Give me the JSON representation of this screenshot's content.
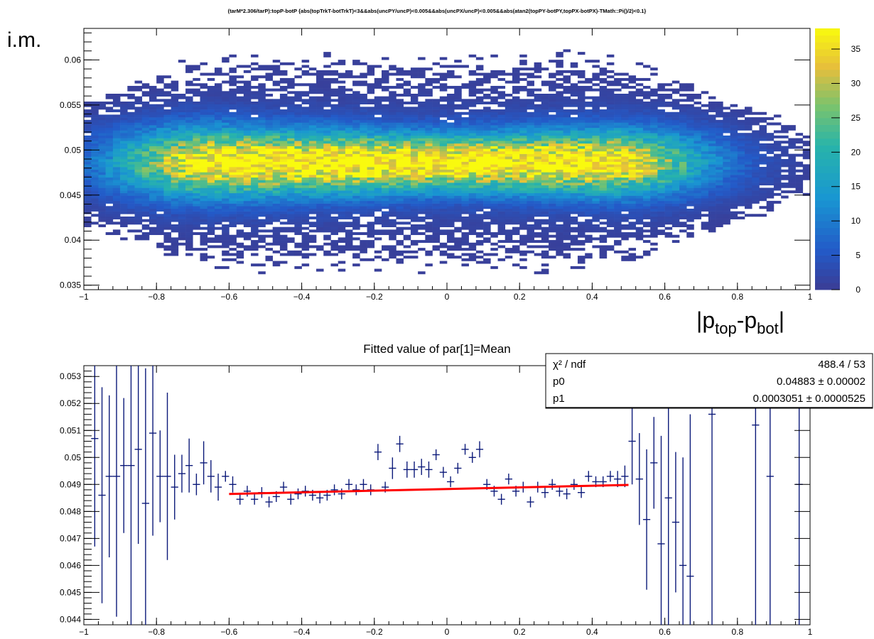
{
  "chart_data": [
    {
      "type": "heatmap",
      "title": "(tarM*2.306/tarP):topP-botP {abs(topTrkT-botTrkT)<3&&abs(uncPY/uncP)<0.005&&abs(uncPX/uncP)<0.005&&abs(atan2(topPY-botPY,topPX-botPX)-TMath::Pi()/2)<0.1}",
      "ylabel": "i.m.",
      "xlabel_parts": [
        "|p",
        "top",
        "-p",
        "bot",
        "|"
      ],
      "xlim": [
        -1,
        1
      ],
      "ylim": [
        0.0345,
        0.0635
      ],
      "xticks": [
        -1,
        -0.8,
        -0.6,
        -0.4,
        -0.2,
        0,
        0.2,
        0.4,
        0.6,
        0.8,
        1
      ],
      "xtick_labels": [
        "−1",
        "−0.8",
        "−0.6",
        "−0.4",
        "−0.2",
        "0",
        "0.2",
        "0.4",
        "0.6",
        "0.8",
        "1"
      ],
      "yticks": [
        0.035,
        0.04,
        0.045,
        0.05,
        0.055,
        0.06
      ],
      "ytick_labels": [
        "0.035",
        "0.04",
        "0.045",
        "0.05",
        "0.055",
        "0.06"
      ],
      "zlim": [
        0,
        38
      ],
      "zticks": [
        0,
        5,
        10,
        15,
        20,
        25,
        30,
        35
      ],
      "ztick_labels": [
        "0",
        "5",
        "10",
        "15",
        "20",
        "25",
        "30",
        "35"
      ],
      "density_model": {
        "peak_count": 36,
        "y_center": 0.0486,
        "y_sigma_core": 0.0021,
        "y_tail_fraction": 0.13,
        "x_plateau": [
          -0.6,
          0.4
        ],
        "x_falloff_width": 0.22,
        "bins": [
          100,
          100
        ]
      },
      "colors": {
        "low": "#3b3c94",
        "mid": "#24a6c8",
        "high": "#f5d637",
        "top": "#f9fa0e"
      }
    },
    {
      "type": "scatter",
      "title": "Fitted value of par[1]=Mean",
      "xlim": [
        -1,
        1
      ],
      "ylim": [
        0.0438,
        0.0534
      ],
      "xticks": [
        -1,
        -0.8,
        -0.6,
        -0.4,
        -0.2,
        0,
        0.2,
        0.4,
        0.6,
        0.8,
        1
      ],
      "xtick_labels": [
        "−1",
        "−0.8",
        "−0.6",
        "−0.4",
        "−0.2",
        "0",
        "0.2",
        "0.4",
        "0.6",
        "0.8",
        "1"
      ],
      "yticks": [
        0.044,
        0.045,
        0.046,
        0.047,
        0.048,
        0.049,
        0.05,
        0.051,
        0.052,
        0.053
      ],
      "ytick_labels": [
        "0.044",
        "0.045",
        "0.046",
        "0.047",
        "0.048",
        "0.049",
        "0.05",
        "0.051",
        "0.052",
        "0.053"
      ],
      "series": [
        {
          "points": [
            [
              -0.97,
              0.0507,
              0.004
            ],
            [
              -0.95,
              0.0486,
              0.004
            ],
            [
              -0.93,
              0.0493,
              0.003
            ],
            [
              -0.91,
              0.0493,
              0.0052
            ],
            [
              -0.89,
              0.0497,
              0.0025
            ],
            [
              -0.87,
              0.0497,
              0.006
            ],
            [
              -0.85,
              0.0503,
              0.0035
            ],
            [
              -0.83,
              0.0483,
              0.005
            ],
            [
              -0.81,
              0.0509,
              0.0038
            ],
            [
              -0.79,
              0.0493,
              0.0017
            ],
            [
              -0.77,
              0.0493,
              0.0031
            ],
            [
              -0.75,
              0.0489,
              0.0012
            ],
            [
              -0.73,
              0.0494,
              0.0007
            ],
            [
              -0.71,
              0.0497,
              0.001
            ],
            [
              -0.69,
              0.049,
              0.0004
            ],
            [
              -0.67,
              0.0498,
              0.0008
            ],
            [
              -0.65,
              0.0493,
              0.0006
            ],
            [
              -0.63,
              0.0489,
              0.0005
            ],
            [
              -0.61,
              0.0493,
              0.0002
            ],
            [
              -0.59,
              0.049,
              0.0003
            ],
            [
              -0.57,
              0.04845,
              0.0002
            ],
            [
              -0.55,
              0.04875,
              0.0002
            ],
            [
              -0.53,
              0.04845,
              0.0002
            ],
            [
              -0.51,
              0.0487,
              0.0002
            ],
            [
              -0.49,
              0.04835,
              0.0002
            ],
            [
              -0.47,
              0.04855,
              0.0002
            ],
            [
              -0.45,
              0.0489,
              0.0002
            ],
            [
              -0.43,
              0.04845,
              0.0002
            ],
            [
              -0.41,
              0.04865,
              0.0002
            ],
            [
              -0.39,
              0.04875,
              0.0002
            ],
            [
              -0.37,
              0.0486,
              0.0002
            ],
            [
              -0.35,
              0.0485,
              0.0002
            ],
            [
              -0.33,
              0.0486,
              0.0002
            ],
            [
              -0.31,
              0.0488,
              0.0002
            ],
            [
              -0.29,
              0.04865,
              0.0002
            ],
            [
              -0.27,
              0.049,
              0.0002
            ],
            [
              -0.25,
              0.0488,
              0.0002
            ],
            [
              -0.23,
              0.049,
              0.0002
            ],
            [
              -0.21,
              0.0488,
              0.0002
            ],
            [
              -0.19,
              0.0502,
              0.0003
            ],
            [
              -0.17,
              0.0489,
              0.0002
            ],
            [
              -0.15,
              0.0496,
              0.0004
            ],
            [
              -0.13,
              0.0505,
              0.0003
            ],
            [
              -0.11,
              0.04955,
              0.0003
            ],
            [
              -0.09,
              0.04955,
              0.0003
            ],
            [
              -0.07,
              0.04965,
              0.0003
            ],
            [
              -0.05,
              0.04955,
              0.0003
            ],
            [
              -0.03,
              0.0501,
              0.0002
            ],
            [
              -0.01,
              0.04945,
              0.0002
            ],
            [
              0.01,
              0.0491,
              0.0002
            ],
            [
              0.03,
              0.0496,
              0.0002
            ],
            [
              0.05,
              0.0503,
              0.0002
            ],
            [
              0.07,
              0.05,
              0.0002
            ],
            [
              0.09,
              0.0503,
              0.0003
            ],
            [
              0.11,
              0.049,
              0.0002
            ],
            [
              0.13,
              0.04875,
              0.0002
            ],
            [
              0.15,
              0.04845,
              0.0002
            ],
            [
              0.17,
              0.0492,
              0.0002
            ],
            [
              0.19,
              0.04875,
              0.0002
            ],
            [
              0.21,
              0.0489,
              0.0002
            ],
            [
              0.23,
              0.04835,
              0.0002
            ],
            [
              0.25,
              0.0489,
              0.0002
            ],
            [
              0.27,
              0.0487,
              0.0002
            ],
            [
              0.29,
              0.049,
              0.0002
            ],
            [
              0.31,
              0.04875,
              0.0002
            ],
            [
              0.33,
              0.04865,
              0.0002
            ],
            [
              0.35,
              0.049,
              0.0002
            ],
            [
              0.37,
              0.0487,
              0.0002
            ],
            [
              0.39,
              0.0493,
              0.0002
            ],
            [
              0.41,
              0.0491,
              0.0002
            ],
            [
              0.43,
              0.0491,
              0.0002
            ],
            [
              0.45,
              0.0493,
              0.0002
            ],
            [
              0.47,
              0.0492,
              0.0003
            ],
            [
              0.49,
              0.0493,
              0.0004
            ],
            [
              0.51,
              0.0506,
              0.0016
            ],
            [
              0.53,
              0.0492,
              0.0017
            ],
            [
              0.55,
              0.0477,
              0.0026
            ],
            [
              0.57,
              0.0498,
              0.0017
            ],
            [
              0.59,
              0.0468,
              0.004
            ],
            [
              0.61,
              0.0485,
              0.005
            ],
            [
              0.63,
              0.0476,
              0.0026
            ],
            [
              0.65,
              0.046,
              0.004
            ],
            [
              0.67,
              0.0456,
              0.006
            ],
            [
              0.73,
              0.0516,
              0.009
            ],
            [
              0.85,
              0.0512,
              0.008
            ],
            [
              0.89,
              0.0493,
              0.008
            ],
            [
              0.97,
              0.049,
              0.008
            ]
          ],
          "xerr": 0.01
        }
      ],
      "fit": {
        "x0": -0.6,
        "x1": 0.5,
        "p0": 0.04883,
        "p1": 0.0003051,
        "color": "#ff0000"
      },
      "stats": [
        {
          "label": "χ² / ndf",
          "value": "488.4 / 53"
        },
        {
          "label": "p0",
          "value": "0.04883 ± 0.00002"
        },
        {
          "label": "p1",
          "value": "0.0003051 ± 0.0000525"
        }
      ],
      "colors": {
        "points": "#0c1a7a",
        "fit": "#ff0000"
      }
    }
  ]
}
